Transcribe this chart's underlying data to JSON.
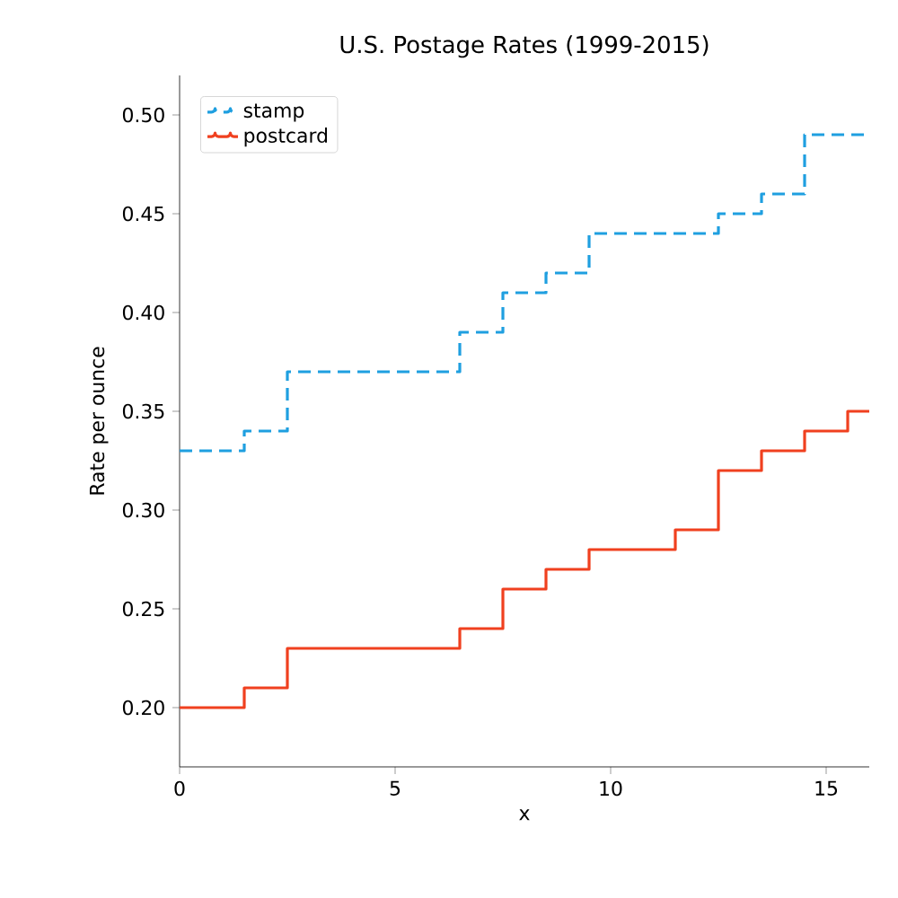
{
  "chart_data": {
    "type": "step",
    "title": "U.S. Postage Rates (1999-2015)",
    "xlabel": "x",
    "ylabel": "Rate per ounce",
    "x": [
      0,
      1,
      2,
      3,
      4,
      5,
      6,
      7,
      8,
      9,
      10,
      11,
      12,
      13,
      14,
      15,
      16
    ],
    "series": [
      {
        "name": "stamp",
        "color": "#1f9fe0",
        "line_style": "dashed",
        "values": [
          0.33,
          0.33,
          0.34,
          0.37,
          0.37,
          0.37,
          0.37,
          0.39,
          0.41,
          0.42,
          0.44,
          0.44,
          0.44,
          0.45,
          0.46,
          0.49,
          0.49
        ]
      },
      {
        "name": "postcard",
        "color": "#f0401f",
        "line_style": "solid",
        "values": [
          0.2,
          0.2,
          0.21,
          0.23,
          0.23,
          0.23,
          0.23,
          0.24,
          0.26,
          0.27,
          0.28,
          0.28,
          0.29,
          0.32,
          0.33,
          0.34,
          0.35
        ]
      }
    ],
    "xlim": [
      0,
      16
    ],
    "ylim": [
      0.17,
      0.52
    ],
    "xticks": [
      0,
      5,
      10,
      15
    ],
    "yticks": [
      {
        "value": 0.2,
        "label": "0.20"
      },
      {
        "value": 0.25,
        "label": "0.25"
      },
      {
        "value": 0.3,
        "label": "0.30"
      },
      {
        "value": 0.35,
        "label": "0.35"
      },
      {
        "value": 0.4,
        "label": "0.40"
      },
      {
        "value": 0.45,
        "label": "0.45"
      },
      {
        "value": 0.5,
        "label": "0.50"
      }
    ],
    "legend": "top left",
    "grid": false
  }
}
